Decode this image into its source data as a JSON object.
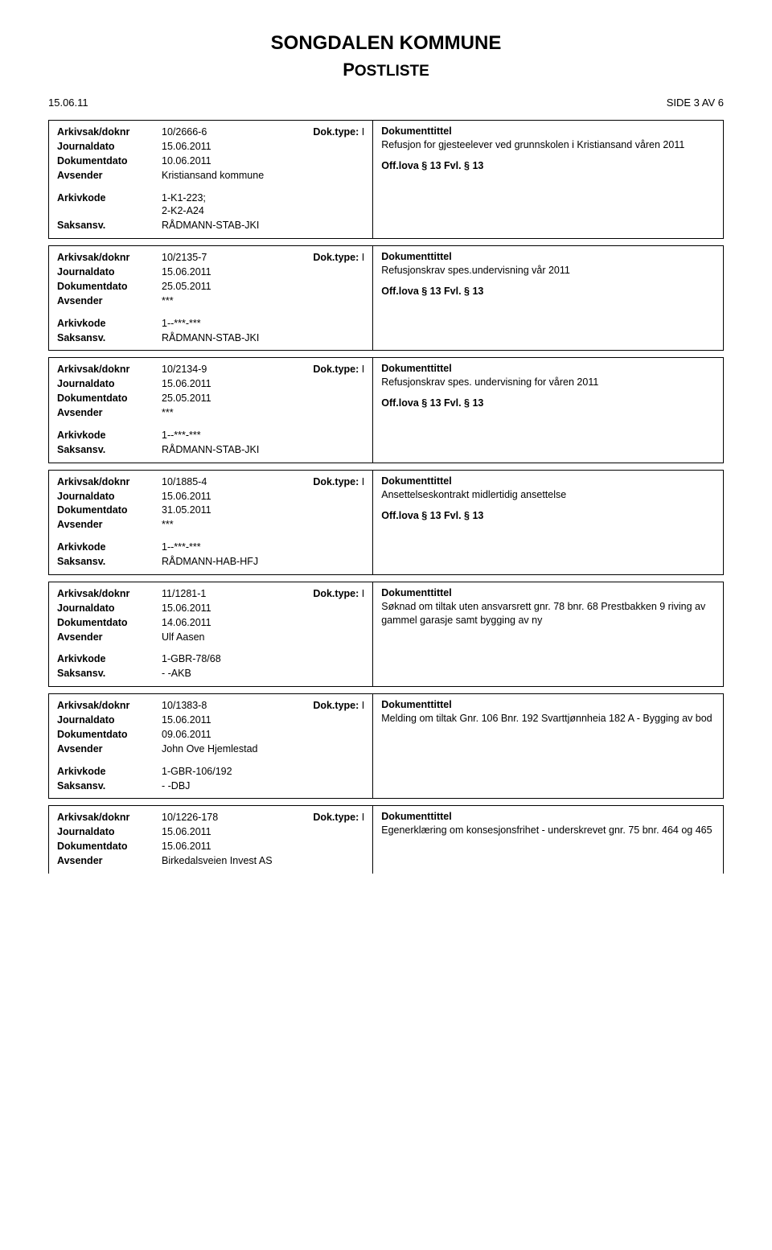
{
  "header": {
    "title": "SONGDALEN KOMMUNE",
    "subtitle_big": "P",
    "subtitle_rest": "OSTLISTE",
    "date_text": "15.06.11",
    "page_text": "SIDE 3 AV 6"
  },
  "field_labels": {
    "arkivsak": "Arkivsak/doknr",
    "journaldato": "Journaldato",
    "dokumentdato": "Dokumentdato",
    "avsender": "Avsender",
    "arkivkode": "Arkivkode",
    "saksansv": "Saksansv.",
    "doktype": "Dok.type:",
    "doktitle": "Dokumenttittel"
  },
  "records": [
    {
      "arkivsak": "10/2666-6",
      "doktype": "I",
      "journaldato": "15.06.2011",
      "dokumentdato": "10.06.2011",
      "avsender": "Kristiansand kommune",
      "arkivkode": "1-K1-223;\n2-K2-A24",
      "saksansv": "RÅDMANN-STAB-JKI",
      "title": "Refusjon for gjesteelever ved grunnskolen i Kristiansand våren 2011",
      "offlova": "Off.lova § 13 Fvl. § 13"
    },
    {
      "arkivsak": "10/2135-7",
      "doktype": "I",
      "journaldato": "15.06.2011",
      "dokumentdato": "25.05.2011",
      "avsender": "***",
      "arkivkode": "1--***-***",
      "saksansv": "RÅDMANN-STAB-JKI",
      "title": "Refusjonskrav spes.undervisning vår 2011",
      "offlova": "Off.lova § 13 Fvl. § 13"
    },
    {
      "arkivsak": "10/2134-9",
      "doktype": "I",
      "journaldato": "15.06.2011",
      "dokumentdato": "25.05.2011",
      "avsender": "***",
      "arkivkode": "1--***-***",
      "saksansv": "RÅDMANN-STAB-JKI",
      "title": "Refusjonskrav spes. undervisning for våren 2011",
      "offlova": "Off.lova § 13 Fvl. § 13"
    },
    {
      "arkivsak": "10/1885-4",
      "doktype": "I",
      "journaldato": "15.06.2011",
      "dokumentdato": "31.05.2011",
      "avsender": "***",
      "arkivkode": "1--***-***",
      "saksansv": "RÅDMANN-HAB-HFJ",
      "title": "Ansettelseskontrakt midlertidig ansettelse",
      "offlova": "Off.lova § 13 Fvl. § 13"
    },
    {
      "arkivsak": "11/1281-1",
      "doktype": "I",
      "journaldato": "15.06.2011",
      "dokumentdato": "14.06.2011",
      "avsender": "Ulf Aasen",
      "arkivkode": "1-GBR-78/68",
      "saksansv": "- -AKB",
      "title": "Søknad om tiltak uten ansvarsrett gnr. 78 bnr. 68 Prestbakken 9  riving av gammel garasje samt bygging av ny",
      "offlova": ""
    },
    {
      "arkivsak": "10/1383-8",
      "doktype": "I",
      "journaldato": "15.06.2011",
      "dokumentdato": "09.06.2011",
      "avsender": "John Ove Hjemlestad",
      "arkivkode": "1-GBR-106/192",
      "saksansv": "- -DBJ",
      "title": "Melding om tiltak Gnr. 106 Bnr. 192 Svarttjønnheia 182 A - Bygging av bod",
      "offlova": ""
    },
    {
      "arkivsak": "10/1226-178",
      "doktype": "I",
      "journaldato": "15.06.2011",
      "dokumentdato": "15.06.2011",
      "avsender": "Birkedalsveien Invest AS",
      "arkivkode": "",
      "saksansv": "",
      "title": "Egenerklæring om konsesjonsfrihet - underskrevet gnr. 75 bnr. 464 og 465",
      "offlova": "",
      "partial": true
    }
  ]
}
